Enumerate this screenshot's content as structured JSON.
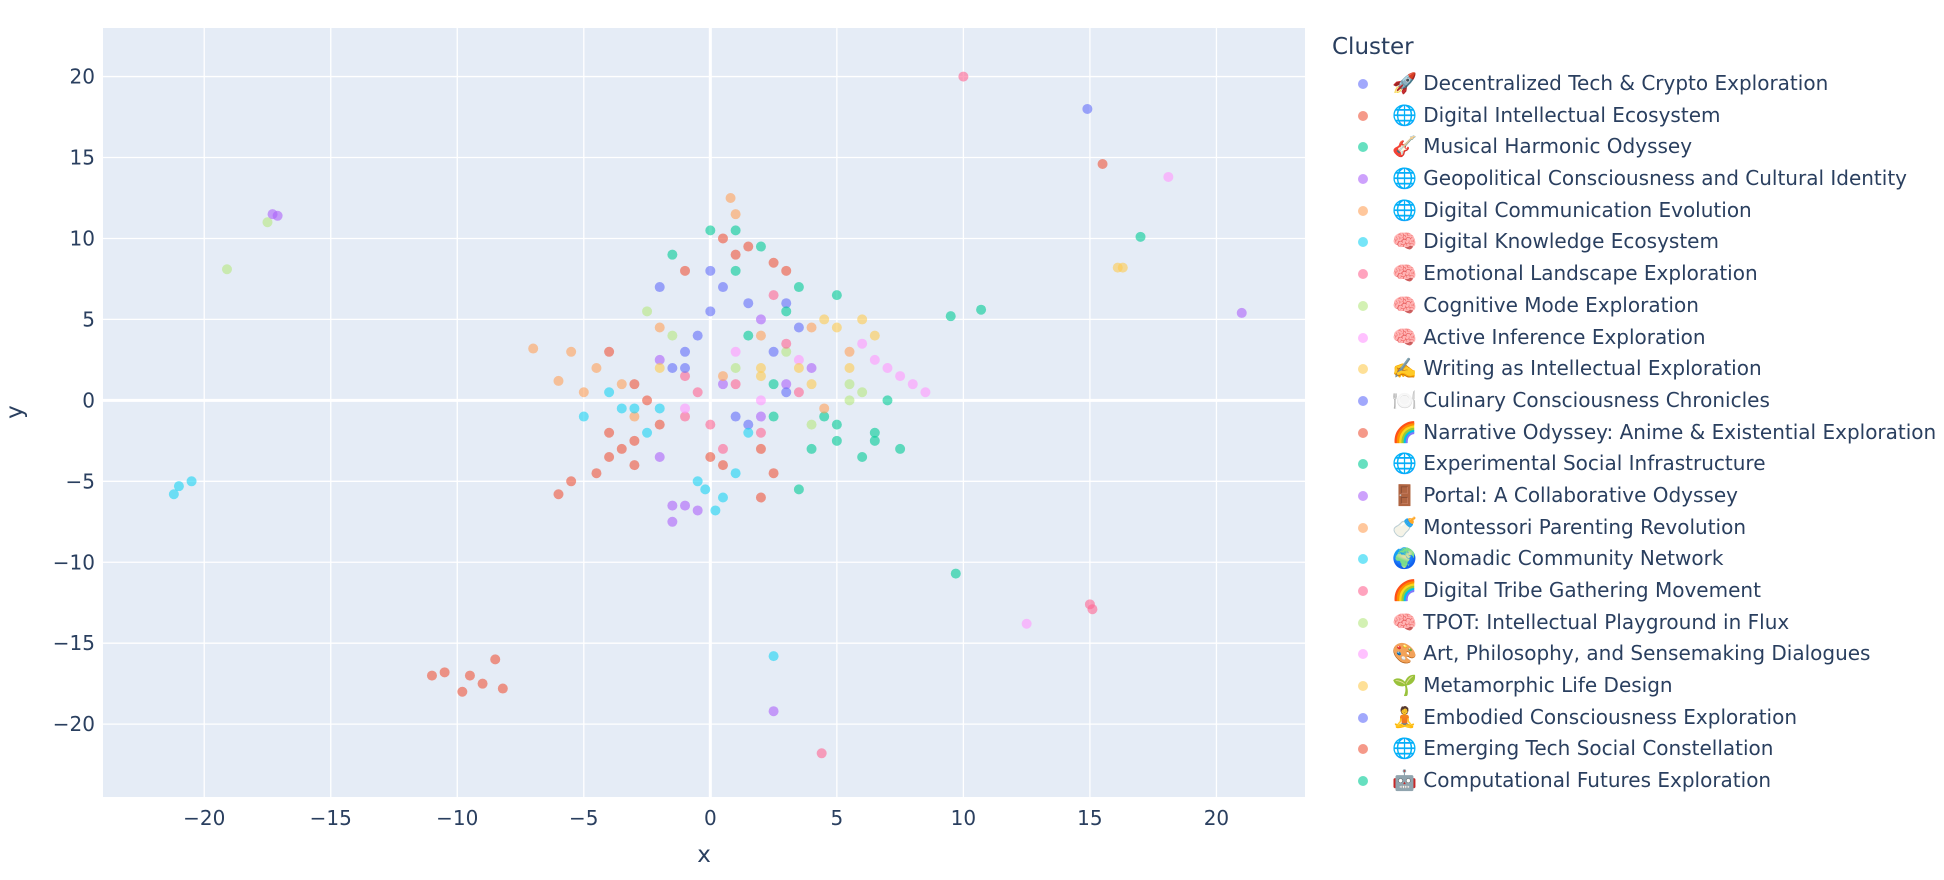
{
  "legend": {
    "title": "Cluster"
  },
  "chart_data": {
    "type": "scatter",
    "title": "",
    "xlabel": "x",
    "ylabel": "y",
    "xlim": [
      -24,
      23.5
    ],
    "ylim": [
      -24.5,
      23
    ],
    "xticks": [
      -20,
      -15,
      -10,
      -5,
      0,
      5,
      10,
      15,
      20
    ],
    "yticks": [
      -20,
      -15,
      -10,
      -5,
      0,
      5,
      10,
      15,
      20
    ],
    "xtick_labels": [
      "−20",
      "−15",
      "−10",
      "−5",
      "0",
      "5",
      "10",
      "15",
      "20"
    ],
    "ytick_labels": [
      "−20",
      "−15",
      "−10",
      "−5",
      "0",
      "5",
      "10",
      "15",
      "20"
    ],
    "grid": true,
    "legend_position": "right",
    "series": [
      {
        "name": "🚀 Decentralized Tech & Crypto Exploration",
        "color": "#636efa",
        "points": [
          [
            -1.5,
            2
          ],
          [
            0.5,
            7
          ],
          [
            2.5,
            3
          ],
          [
            -0.5,
            4
          ],
          [
            1,
            -1
          ],
          [
            3,
            6
          ],
          [
            14.9,
            18
          ]
        ]
      },
      {
        "name": "🌐 Digital Intellectual Ecosystem",
        "color": "#ef553b",
        "points": [
          [
            -9.5,
            -17
          ],
          [
            -9,
            -17.5
          ],
          [
            -10.5,
            -16.8
          ],
          [
            -8.5,
            -16
          ],
          [
            -9.8,
            -18
          ],
          [
            -11,
            -17
          ],
          [
            -8.2,
            -17.8
          ],
          [
            -3,
            -2.5
          ],
          [
            -4,
            -3.5
          ],
          [
            -2,
            -1.5
          ],
          [
            0,
            -3.5
          ],
          [
            2,
            -3
          ],
          [
            1.5,
            9.5
          ],
          [
            3,
            8
          ],
          [
            -4,
            3
          ],
          [
            -3,
            1
          ],
          [
            15.5,
            14.6
          ]
        ]
      },
      {
        "name": "🎸 Musical Harmonic Odyssey",
        "color": "#00cc96",
        "points": [
          [
            2,
            9.5
          ],
          [
            3.5,
            7
          ],
          [
            4.5,
            -1
          ],
          [
            5,
            -2.5
          ],
          [
            6.5,
            -2
          ],
          [
            7,
            0
          ],
          [
            6,
            -3.5
          ],
          [
            3.5,
            -5.5
          ],
          [
            1,
            10.5
          ],
          [
            9.5,
            5.2
          ],
          [
            10.7,
            5.6
          ],
          [
            9.7,
            -10.7
          ],
          [
            17,
            10.1
          ]
        ]
      },
      {
        "name": "🌐 Geopolitical Consciousness and Cultural Identity",
        "color": "#ab63fa",
        "points": [
          [
            -1,
            -6.5
          ],
          [
            -1.5,
            -7.5
          ],
          [
            2,
            5
          ],
          [
            -2,
            2.5
          ],
          [
            0.5,
            1
          ],
          [
            4,
            2
          ],
          [
            -17.1,
            11.4
          ],
          [
            -17.3,
            11.5
          ],
          [
            2.5,
            -19.2
          ],
          [
            21,
            5.4
          ]
        ]
      },
      {
        "name": "🌐 Digital Communication Evolution",
        "color": "#ffa15a",
        "points": [
          [
            -6,
            1.2
          ],
          [
            -5.5,
            3
          ],
          [
            -7,
            3.2
          ],
          [
            -4.5,
            2
          ],
          [
            -5,
            0.5
          ],
          [
            -3.5,
            1
          ],
          [
            0.8,
            12.5
          ],
          [
            1,
            11.5
          ],
          [
            2,
            4
          ],
          [
            4,
            4.5
          ],
          [
            5.5,
            3
          ]
        ]
      },
      {
        "name": "🧠 Digital Knowledge Ecosystem",
        "color": "#19d3f3",
        "points": [
          [
            -0.2,
            -5.5
          ],
          [
            0.5,
            -6
          ],
          [
            -0.5,
            -5
          ],
          [
            0.2,
            -6.8
          ],
          [
            1,
            -4.5
          ],
          [
            -3.5,
            -0.5
          ],
          [
            -5,
            -1
          ],
          [
            -2,
            -0.5
          ],
          [
            -21,
            -5.3
          ],
          [
            -21.2,
            -5.8
          ],
          [
            -20.5,
            -5
          ],
          [
            2.5,
            -15.8
          ]
        ]
      },
      {
        "name": "🧠 Emotional Landscape Exploration",
        "color": "#ff6692",
        "points": [
          [
            -1,
            -1
          ],
          [
            1,
            1
          ],
          [
            2,
            -2
          ],
          [
            -0.5,
            0.5
          ],
          [
            3.5,
            0.5
          ],
          [
            0.5,
            -3
          ],
          [
            15,
            -12.6
          ],
          [
            15.1,
            -12.9
          ],
          [
            4.4,
            -21.8
          ],
          [
            10,
            20
          ]
        ]
      },
      {
        "name": "🧠 Cognitive Mode Exploration",
        "color": "#b6e880",
        "points": [
          [
            -1.5,
            4
          ],
          [
            1,
            2
          ],
          [
            3,
            3
          ],
          [
            5.5,
            0
          ],
          [
            -19.1,
            8.1
          ],
          [
            -17.5,
            11
          ]
        ]
      },
      {
        "name": "🧠 Active Inference Exploration",
        "color": "#ff97ff",
        "points": [
          [
            6.5,
            2.5
          ],
          [
            7.5,
            1.5
          ],
          [
            8,
            1
          ],
          [
            8.5,
            0.5
          ],
          [
            6,
            3.5
          ],
          [
            7,
            2
          ],
          [
            12.5,
            -13.8
          ],
          [
            18.1,
            13.8
          ]
        ]
      },
      {
        "name": "✍️ Writing as Intellectual Exploration",
        "color": "#fecb52",
        "points": [
          [
            5,
            4.5
          ],
          [
            6,
            5
          ],
          [
            5.5,
            2
          ],
          [
            4,
            1
          ],
          [
            2,
            2
          ],
          [
            6.5,
            4
          ],
          [
            16.1,
            8.2
          ],
          [
            16.3,
            8.2
          ]
        ]
      },
      {
        "name": "🍽️ Culinary Consciousness Chronicles",
        "color": "#636efa",
        "points": [
          [
            -2,
            7
          ],
          [
            -1,
            3
          ],
          [
            1.5,
            -1.5
          ],
          [
            3.5,
            4.5
          ],
          [
            0,
            8
          ]
        ]
      },
      {
        "name": "🌈 Narrative Odyssey: Anime & Existential Exploration",
        "color": "#ef553b",
        "points": [
          [
            -5.5,
            -5
          ],
          [
            -4.5,
            -4.5
          ],
          [
            -3.5,
            -3
          ],
          [
            -6,
            -5.8
          ],
          [
            -4,
            -2
          ],
          [
            2.5,
            -4.5
          ],
          [
            2,
            -6
          ],
          [
            1,
            9
          ],
          [
            0.5,
            10
          ]
        ]
      },
      {
        "name": "🌐 Experimental Social Infrastructure",
        "color": "#00cc96",
        "points": [
          [
            -1.5,
            9
          ],
          [
            0,
            10.5
          ],
          [
            1,
            8
          ],
          [
            4,
            -3
          ],
          [
            2.5,
            -1
          ],
          [
            5,
            6.5
          ],
          [
            3,
            5.5
          ]
        ]
      },
      {
        "name": "🚪 Portal: A Collaborative Odyssey",
        "color": "#ab63fa",
        "points": [
          [
            -0.5,
            -6.8
          ],
          [
            -1.5,
            -6.5
          ],
          [
            -2,
            -3.5
          ],
          [
            3,
            1
          ],
          [
            2,
            -1
          ]
        ]
      },
      {
        "name": "🍼 Montessori Parenting Revolution",
        "color": "#ffa15a",
        "points": [
          [
            -3,
            -1
          ],
          [
            -2,
            4.5
          ],
          [
            0.5,
            1.5
          ],
          [
            4.5,
            -0.5
          ]
        ]
      },
      {
        "name": "🌍 Nomadic Community Network",
        "color": "#19d3f3",
        "points": [
          [
            -2.5,
            -2
          ],
          [
            -3,
            -0.5
          ],
          [
            1.5,
            -2
          ],
          [
            -4,
            0.5
          ]
        ]
      },
      {
        "name": "🌈 Digital Tribe Gathering Movement",
        "color": "#ff6692",
        "points": [
          [
            2.5,
            6.5
          ],
          [
            3,
            3.5
          ],
          [
            0,
            -1.5
          ],
          [
            -1,
            1.5
          ]
        ]
      },
      {
        "name": "🧠 TPOT: Intellectual Playground in Flux",
        "color": "#b6e880",
        "points": [
          [
            -2.5,
            5.5
          ],
          [
            5.5,
            1
          ],
          [
            6,
            0.5
          ],
          [
            4,
            -1.5
          ]
        ]
      },
      {
        "name": "🎨 Art, Philosophy, and Sensemaking Dialogues",
        "color": "#ff97ff",
        "points": [
          [
            1,
            3
          ],
          [
            -1,
            -0.5
          ],
          [
            2,
            0
          ],
          [
            3.5,
            2.5
          ]
        ]
      },
      {
        "name": "🌱 Metamorphic Life Design",
        "color": "#fecb52",
        "points": [
          [
            2,
            1.5
          ],
          [
            3.5,
            2
          ],
          [
            4.5,
            5
          ],
          [
            -2,
            2
          ]
        ]
      },
      {
        "name": "🧘 Embodied Consciousness Exploration",
        "color": "#636efa",
        "points": [
          [
            0,
            5.5
          ],
          [
            1.5,
            6
          ],
          [
            -1,
            2
          ],
          [
            3,
            0.5
          ]
        ]
      },
      {
        "name": "🌐 Emerging Tech Social Constellation",
        "color": "#ef553b",
        "points": [
          [
            -2.5,
            0
          ],
          [
            -3,
            -4
          ],
          [
            0.5,
            -4
          ],
          [
            2.5,
            8.5
          ],
          [
            -1,
            8
          ]
        ]
      },
      {
        "name": "🤖 Computational Futures Exploration",
        "color": "#00cc96",
        "points": [
          [
            1.5,
            4
          ],
          [
            2.5,
            1
          ],
          [
            5,
            -1.5
          ],
          [
            6.5,
            -2.5
          ],
          [
            7.5,
            -3
          ]
        ]
      }
    ]
  }
}
